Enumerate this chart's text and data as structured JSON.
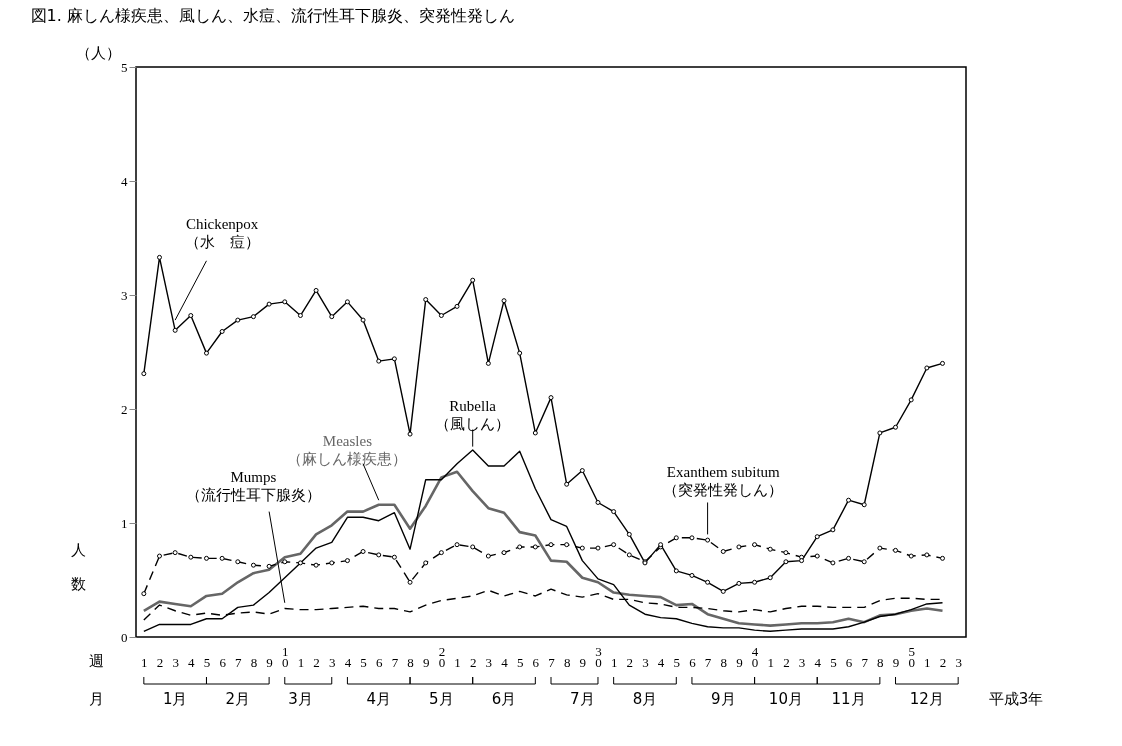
{
  "chart_data": {
    "type": "line",
    "title": "図1. 麻しん様疾患、風しん、水痘、流行性耳下腺炎、突発性発しん",
    "ylabel": "人数",
    "categories": [
      "1",
      "2",
      "3",
      "4",
      "5",
      "6",
      "7",
      "8",
      "9",
      "10",
      "1",
      "2",
      "3",
      "4",
      "5",
      "6",
      "7",
      "8",
      "9",
      "20",
      "1",
      "2",
      "3",
      "4",
      "5",
      "6",
      "7",
      "8",
      "9",
      "30",
      "1",
      "2",
      "3",
      "4",
      "5",
      "6",
      "7",
      "8",
      "9",
      "40",
      "1",
      "2",
      "3",
      "4",
      "5",
      "6",
      "7",
      "8",
      "9",
      "50",
      "1",
      "2",
      "3"
    ],
    "series": [
      {
        "name": "Chickenpox\n（水　痘）",
        "color": "#000000",
        "marker": "circle",
        "line_style": "solid",
        "values": [
          2.31,
          3.33,
          2.69,
          2.82,
          2.49,
          2.68,
          2.78,
          2.81,
          2.92,
          2.94,
          2.82,
          3.04,
          2.81,
          2.94,
          2.78,
          2.42,
          2.44,
          1.78,
          2.96,
          2.82,
          2.9,
          3.13,
          2.4,
          2.95,
          2.49,
          1.79,
          2.1,
          1.34,
          1.46,
          1.18,
          1.1,
          0.9,
          0.65,
          0.81,
          0.58,
          0.54,
          0.48,
          0.4,
          0.47,
          0.48,
          0.52,
          0.66,
          0.67,
          0.88,
          0.94,
          1.2,
          1.16,
          1.79,
          1.84,
          2.08,
          2.36,
          2.4,
          null
        ]
      },
      {
        "name": "Measles\n（麻しん様疾患）",
        "color": "#666666",
        "marker": "none",
        "line_style": "solid",
        "values": [
          0.23,
          0.31,
          0.29,
          0.27,
          0.36,
          0.38,
          0.48,
          0.56,
          0.59,
          0.7,
          0.73,
          0.9,
          0.98,
          1.1,
          1.1,
          1.16,
          1.16,
          0.95,
          1.15,
          1.4,
          1.45,
          1.28,
          1.13,
          1.09,
          0.92,
          0.89,
          0.67,
          0.66,
          0.52,
          0.48,
          0.39,
          0.37,
          0.36,
          0.35,
          0.28,
          0.29,
          0.2,
          0.16,
          0.12,
          0.11,
          0.1,
          0.11,
          0.12,
          0.12,
          0.13,
          0.16,
          0.13,
          0.19,
          0.2,
          0.23,
          0.25,
          0.23,
          null
        ]
      },
      {
        "name": "Mumps\n（流行性耳下腺炎）",
        "color": "#000000",
        "marker": "none",
        "line_style": "dashed",
        "values": [
          0.15,
          0.28,
          0.23,
          0.19,
          0.21,
          0.19,
          0.21,
          0.22,
          0.2,
          0.25,
          0.24,
          0.24,
          0.25,
          0.26,
          0.27,
          0.25,
          0.25,
          0.22,
          0.28,
          0.32,
          0.34,
          0.36,
          0.41,
          0.36,
          0.4,
          0.36,
          0.42,
          0.37,
          0.35,
          0.38,
          0.33,
          0.33,
          0.3,
          0.29,
          0.26,
          0.26,
          0.25,
          0.23,
          0.22,
          0.24,
          0.22,
          0.25,
          0.27,
          0.27,
          0.26,
          0.26,
          0.26,
          0.32,
          0.34,
          0.34,
          0.33,
          0.33,
          null
        ]
      },
      {
        "name": "Rubella\n（風しん）",
        "color": "#000000",
        "marker": "none",
        "line_style": "solid",
        "values": [
          0.05,
          0.11,
          0.11,
          0.11,
          0.16,
          0.16,
          0.26,
          0.28,
          0.39,
          0.52,
          0.65,
          0.78,
          0.83,
          1.05,
          1.05,
          1.02,
          1.09,
          0.77,
          1.38,
          1.38,
          1.52,
          1.64,
          1.5,
          1.5,
          1.63,
          1.3,
          1.03,
          0.97,
          0.67,
          0.51,
          0.46,
          0.28,
          0.2,
          0.17,
          0.16,
          0.12,
          0.09,
          0.08,
          0.08,
          0.06,
          0.05,
          0.06,
          0.07,
          0.07,
          0.07,
          0.09,
          0.13,
          0.18,
          0.2,
          0.24,
          0.29,
          0.3,
          null
        ]
      },
      {
        "name": "Exanthem subitum\n（突発性発しん）",
        "color": "#000000",
        "marker": "circle",
        "line_style": "dashed",
        "values": [
          0.38,
          0.71,
          0.74,
          0.7,
          0.69,
          0.69,
          0.66,
          0.63,
          0.62,
          0.66,
          0.65,
          0.63,
          0.65,
          0.67,
          0.75,
          0.72,
          0.7,
          0.48,
          0.65,
          0.74,
          0.81,
          0.79,
          0.71,
          0.74,
          0.79,
          0.79,
          0.81,
          0.81,
          0.78,
          0.78,
          0.81,
          0.72,
          0.66,
          0.79,
          0.87,
          0.87,
          0.85,
          0.75,
          0.79,
          0.81,
          0.77,
          0.74,
          0.7,
          0.71,
          0.65,
          0.69,
          0.66,
          0.78,
          0.76,
          0.71,
          0.72,
          0.69,
          null
        ]
      }
    ],
    "ylim": [
      0,
      5
    ],
    "yticks": [
      0,
      1,
      2,
      3,
      4,
      5
    ],
    "grid": false,
    "annotations": [
      "（人）",
      "週",
      "月",
      "1月",
      "2月",
      "3月",
      "4月",
      "5月",
      "6月",
      "7月",
      "8月",
      "9月",
      "10月",
      "11月",
      "12月",
      "平成3年"
    ]
  }
}
